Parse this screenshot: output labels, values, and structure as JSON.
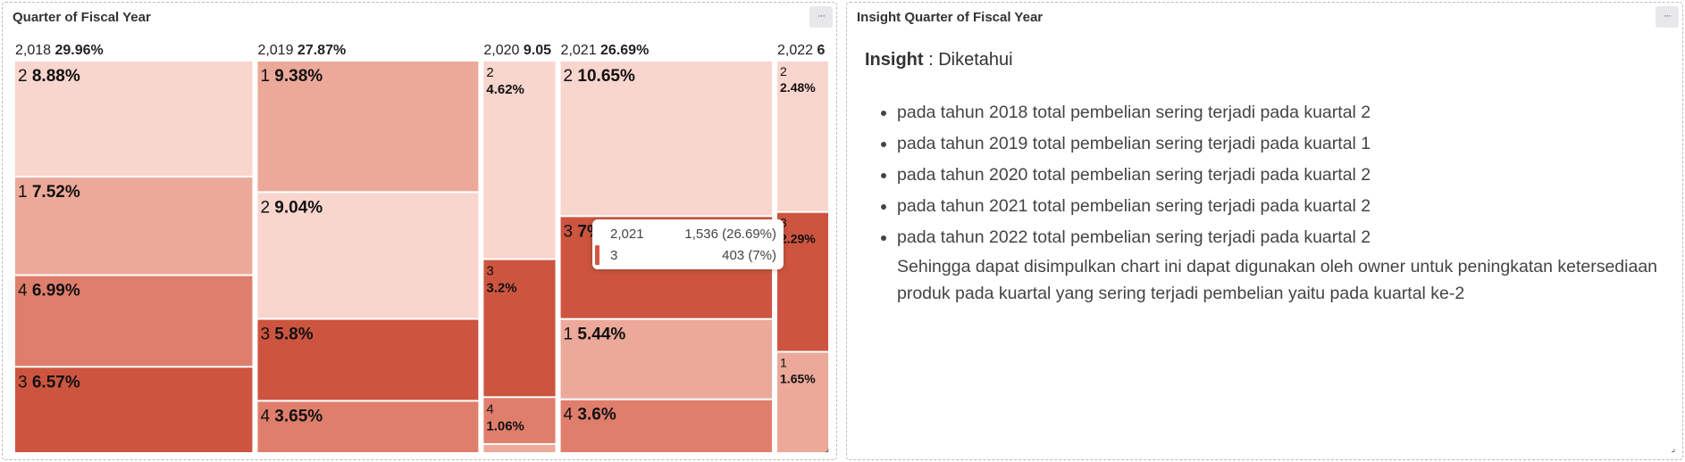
{
  "left_panel": {
    "title": "Quarter of Fiscal Year",
    "menu_glyph": "···"
  },
  "right_panel": {
    "title": "Insight Quarter of Fiscal Year",
    "menu_glyph": "···",
    "insight_label": "Insight",
    "insight_value": ": Diketahui",
    "items": [
      "pada tahun 2018 total pembelian sering terjadi pada kuartal 2",
      "pada tahun 2019 total pembelian sering terjadi pada kuartal 1",
      "pada tahun 2020 total pembelian sering terjadi pada kuartal 2",
      "pada tahun 2021 total pembelian sering terjadi pada kuartal 2",
      "pada tahun 2022 total pembelian sering terjadi pada kuartal 2"
    ],
    "conclusion": "Sehingga dapat disimpulkan chart ini dapat digunakan oleh owner untuk peningkatan ketersediaan produk pada kuartal yang sering terjadi pembelian yaitu pada kuartal ke-2"
  },
  "tooltip": {
    "row1_label": "2,021",
    "row1_value": "1,536 (26.69%)",
    "row2_label": "3",
    "row2_value": "403 (7%)"
  },
  "chart_data": {
    "type": "mosaic",
    "title": "Quarter of Fiscal Year",
    "colors": {
      "light": "#f8d5cd",
      "mid": "#eca999",
      "strong": "#e07e6c",
      "dark": "#cd5540"
    },
    "columns": [
      {
        "year": "2,018",
        "share_label": "29.96%",
        "share": 29.96,
        "cells": [
          {
            "quarter": "2",
            "label": "8.88%",
            "value": 8.88,
            "shade": "light"
          },
          {
            "quarter": "1",
            "label": "7.52%",
            "value": 7.52,
            "shade": "mid"
          },
          {
            "quarter": "4",
            "label": "6.99%",
            "value": 6.99,
            "shade": "strong"
          },
          {
            "quarter": "3",
            "label": "6.57%",
            "value": 6.57,
            "shade": "dark"
          }
        ]
      },
      {
        "year": "2,019",
        "share_label": "27.87%",
        "share": 27.87,
        "cells": [
          {
            "quarter": "1",
            "label": "9.38%",
            "value": 9.38,
            "shade": "mid"
          },
          {
            "quarter": "2",
            "label": "9.04%",
            "value": 9.04,
            "shade": "light"
          },
          {
            "quarter": "3",
            "label": "5.8%",
            "value": 5.8,
            "shade": "dark"
          },
          {
            "quarter": "4",
            "label": "3.65%",
            "value": 3.65,
            "shade": "strong"
          }
        ]
      },
      {
        "year": "2,020",
        "share_label": "9.05",
        "share": 9.05,
        "cells": [
          {
            "quarter": "2",
            "label": "4.62%",
            "value": 4.62,
            "shade": "light"
          },
          {
            "quarter": "3",
            "label": "3.2%",
            "value": 3.2,
            "shade": "dark"
          },
          {
            "quarter": "4",
            "label": "1.06%",
            "value": 1.06,
            "shade": "strong"
          },
          {
            "quarter": "",
            "label": "",
            "value": 0.17,
            "shade": "mid"
          }
        ]
      },
      {
        "year": "2,021",
        "share_label": "26.69%",
        "share": 26.69,
        "cells": [
          {
            "quarter": "2",
            "label": "10.65%",
            "value": 10.65,
            "shade": "light"
          },
          {
            "quarter": "3",
            "label": "7%",
            "value": 7.0,
            "shade": "dark"
          },
          {
            "quarter": "1",
            "label": "5.44%",
            "value": 5.44,
            "shade": "mid"
          },
          {
            "quarter": "4",
            "label": "3.6%",
            "value": 3.6,
            "shade": "strong"
          }
        ]
      },
      {
        "year": "2,022",
        "share_label": "6",
        "share": 6.43,
        "cells": [
          {
            "quarter": "2",
            "label": "2.48%",
            "value": 2.48,
            "shade": "light"
          },
          {
            "quarter": "3",
            "label": "2.29%",
            "value": 2.29,
            "shade": "dark"
          },
          {
            "quarter": "1",
            "label": "1.65%",
            "value": 1.65,
            "shade": "mid"
          }
        ]
      }
    ]
  }
}
